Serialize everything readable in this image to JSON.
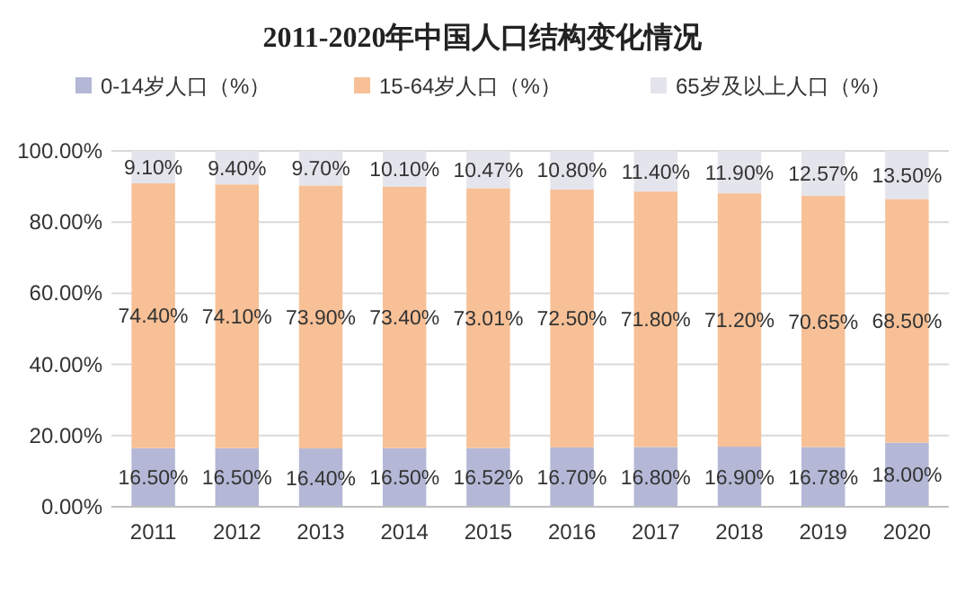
{
  "chart_data": {
    "type": "bar",
    "stacked": true,
    "title": "2011-2020年中国人口结构变化情况",
    "categories": [
      "2011",
      "2012",
      "2013",
      "2014",
      "2015",
      "2016",
      "2017",
      "2018",
      "2019",
      "2020"
    ],
    "series": [
      {
        "name": "0-14岁人口（%）",
        "color": "#b4b8d6",
        "values": [
          16.5,
          16.5,
          16.4,
          16.5,
          16.52,
          16.7,
          16.8,
          16.9,
          16.78,
          18.0
        ],
        "value_labels": [
          "16.50%",
          "16.50%",
          "16.40%",
          "16.50%",
          "16.52%",
          "16.70%",
          "16.80%",
          "16.90%",
          "16.78%",
          "18.00%"
        ]
      },
      {
        "name": "15-64岁人口（%）",
        "color": "#f7c096",
        "values": [
          74.4,
          74.1,
          73.9,
          73.4,
          73.01,
          72.5,
          71.8,
          71.2,
          70.65,
          68.5
        ],
        "value_labels": [
          "74.40%",
          "74.10%",
          "73.90%",
          "73.40%",
          "73.01%",
          "72.50%",
          "71.80%",
          "71.20%",
          "70.65%",
          "68.50%"
        ]
      },
      {
        "name": "65岁及以上人口（%）",
        "color": "#e4e4ec",
        "values": [
          9.1,
          9.4,
          9.7,
          10.1,
          10.47,
          10.8,
          11.4,
          11.9,
          12.57,
          13.5
        ],
        "value_labels": [
          "9.10%",
          "9.40%",
          "9.70%",
          "10.10%",
          "10.47%",
          "10.80%",
          "11.40%",
          "11.90%",
          "12.57%",
          "13.50%"
        ]
      }
    ],
    "ylim": [
      0,
      100
    ],
    "yticks": [
      {
        "value": 0,
        "label": "0.00%"
      },
      {
        "value": 20,
        "label": "20.00%"
      },
      {
        "value": 40,
        "label": "40.00%"
      },
      {
        "value": 60,
        "label": "60.00%"
      },
      {
        "value": 80,
        "label": "80.00%"
      },
      {
        "value": 100,
        "label": "100.00%"
      }
    ],
    "grid": "y",
    "legend": "top"
  }
}
